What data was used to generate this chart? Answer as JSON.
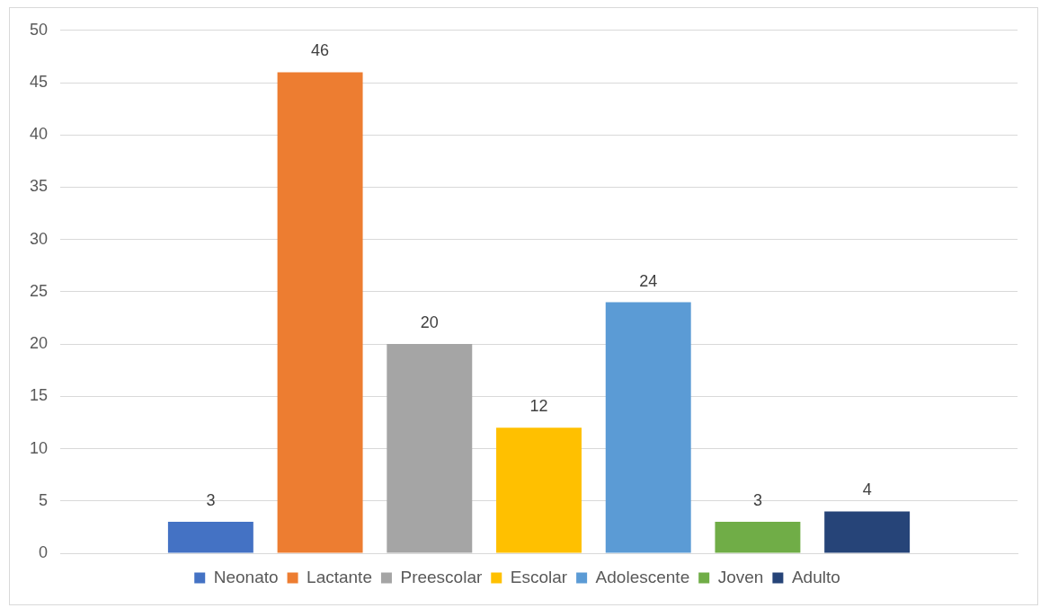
{
  "chart_data": {
    "type": "bar",
    "categories": [
      null
    ],
    "series": [
      {
        "name": "Neonato",
        "color": "#4472c4",
        "values": [
          3
        ]
      },
      {
        "name": "Lactante",
        "color": "#ed7d31",
        "values": [
          46
        ]
      },
      {
        "name": "Preescolar",
        "color": "#a5a5a5",
        "values": [
          20
        ]
      },
      {
        "name": "Escolar",
        "color": "#ffc000",
        "values": [
          12
        ]
      },
      {
        "name": "Adolescente",
        "color": "#5b9bd5",
        "values": [
          24
        ]
      },
      {
        "name": "Joven",
        "color": "#70ad47",
        "values": [
          3
        ]
      },
      {
        "name": "Adulto",
        "color": "#264478",
        "values": [
          4
        ]
      }
    ],
    "ylim": [
      0,
      50
    ],
    "yticks": [
      0,
      5,
      10,
      15,
      20,
      25,
      30,
      35,
      40,
      45,
      50
    ],
    "grid": "y",
    "legend": "bottom",
    "data_labels": true,
    "tick_labels": "y"
  }
}
